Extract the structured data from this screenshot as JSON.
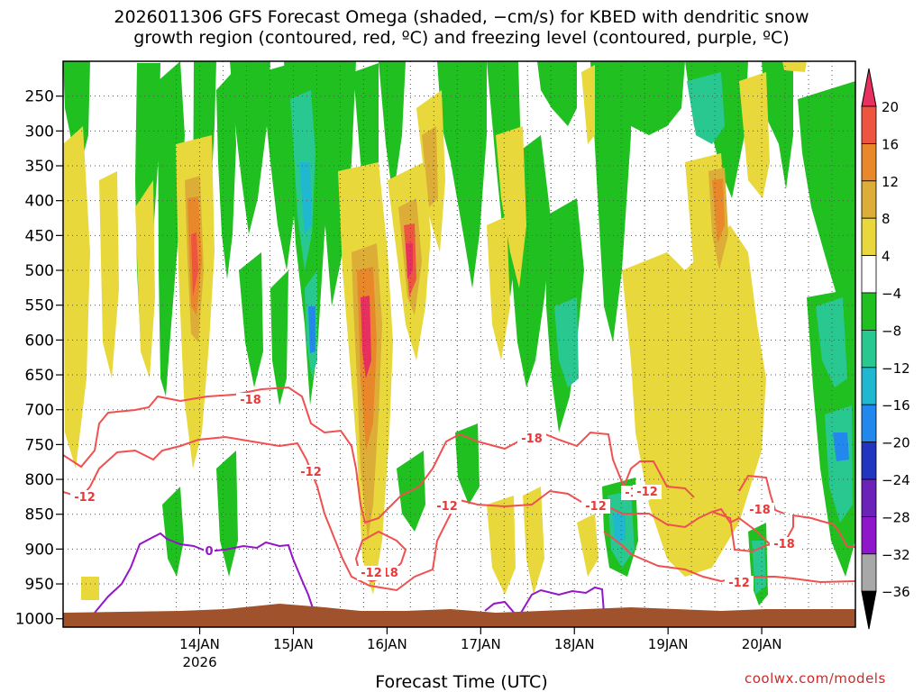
{
  "title": "2026011306 GFS Forecast Omega (shaded, −cm/s) for KBED with dendritic snow\ngrowth region (contoured, red, ºC) and freezing level (contoured, purple, ºC)",
  "xlabel": "Forecast Time (UTC)",
  "credit": "coolwx.com/models",
  "chart_data": {
    "type": "heatmap",
    "ylim": [
      1000,
      200
    ],
    "y_ticks": [
      250,
      300,
      350,
      400,
      450,
      500,
      550,
      600,
      650,
      700,
      750,
      800,
      850,
      900,
      950,
      1000
    ],
    "x_range_hours": [
      -17,
      186
    ],
    "x_ticks": [
      {
        "label": "14JAN",
        "hour": 18,
        "sub": "2026"
      },
      {
        "label": "15JAN",
        "hour": 42
      },
      {
        "label": "16JAN",
        "hour": 66
      },
      {
        "label": "17JAN",
        "hour": 90
      },
      {
        "label": "18JAN",
        "hour": 114
      },
      {
        "label": "19JAN",
        "hour": 138
      },
      {
        "label": "20JAN",
        "hour": 162
      }
    ],
    "colorbar": {
      "labels": [
        "20",
        "16",
        "12",
        "8",
        "4",
        "−4",
        "−8",
        "−12",
        "−16",
        "−20",
        "−24",
        "−28",
        "−32",
        "−36"
      ],
      "colors": [
        "#e83060",
        "#ee5540",
        "#e8882a",
        "#dcae38",
        "#e8d83c",
        "#ffffff",
        "#20c020",
        "#28c890",
        "#20b8d0",
        "#2288ee",
        "#2235c0",
        "#6a22b8",
        "#9016cc",
        "#a8a8a8",
        "#000000"
      ]
    },
    "contour_labels": [
      "-18",
      "-12",
      "-12",
      "-18",
      "-12",
      "-18",
      "-12",
      "-18",
      "-12",
      "-18",
      "-18",
      "-12",
      "-12",
      "0"
    ],
    "ground_color": "#a0522d"
  }
}
